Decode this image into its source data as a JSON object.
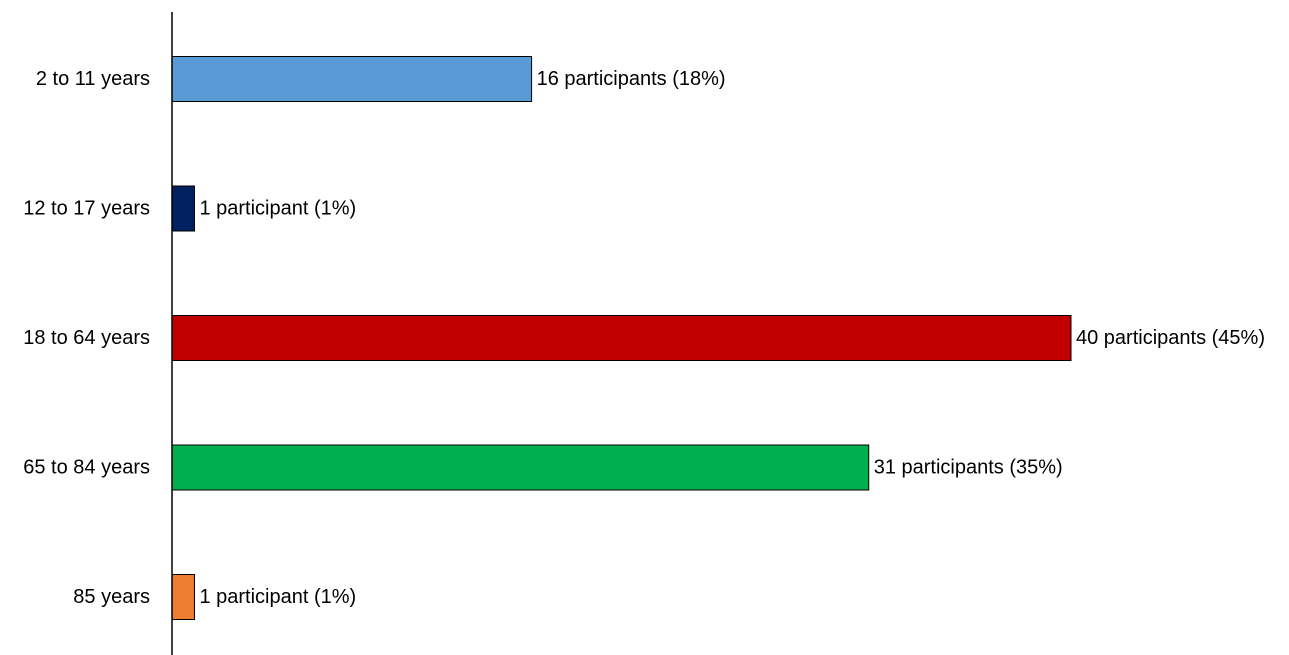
{
  "chart_data": {
    "type": "bar",
    "orientation": "horizontal",
    "title": "",
    "xlabel": "",
    "ylabel": "",
    "categories": [
      "2 to 11 years",
      "12 to 17 years",
      "18 to 64 years",
      "65 to 84 years",
      "85 years"
    ],
    "values": [
      16,
      1,
      40,
      31,
      1
    ],
    "data_labels": [
      "16 participants (18%)",
      "1 participant (1%)",
      "40 participants (45%)",
      "31 participants (35%)",
      "1 participant (1%)"
    ],
    "colors": [
      "#5b9bd5",
      "#002060",
      "#c00000",
      "#00b050",
      "#ed7d31"
    ],
    "xlim": [
      0,
      40
    ],
    "grid": false,
    "legend": "none"
  }
}
